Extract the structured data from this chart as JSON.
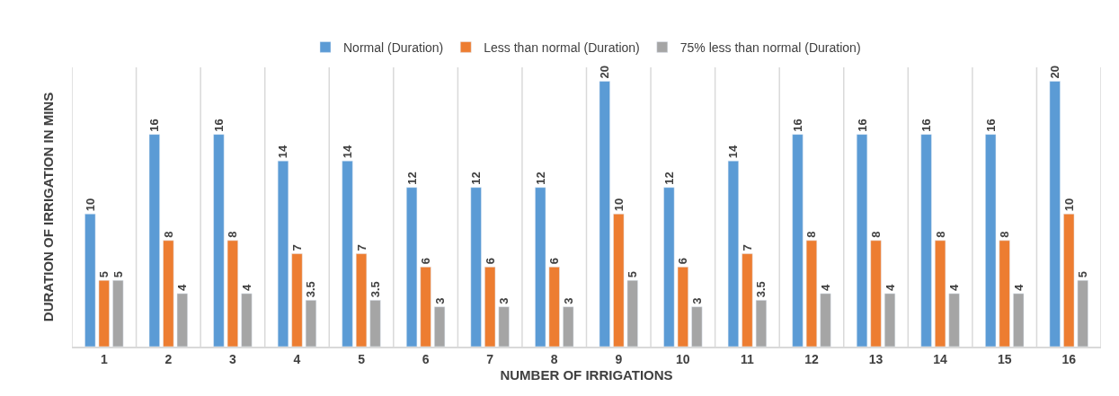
{
  "chart_data": {
    "type": "bar",
    "xlabel": "NUMBER OF IRRIGATIONS",
    "ylabel": "DURATION OF IRRIGATION IN MINS",
    "categories": [
      "1",
      "2",
      "3",
      "4",
      "5",
      "6",
      "7",
      "8",
      "9",
      "10",
      "11",
      "12",
      "13",
      "14",
      "15",
      "16"
    ],
    "series": [
      {
        "name": "Normal (Duration)",
        "color": "#5b9bd5",
        "values": [
          10,
          16,
          16,
          14,
          14,
          12,
          12,
          12,
          20,
          12,
          14,
          16,
          16,
          16,
          16,
          20
        ]
      },
      {
        "name": "Less than normal (Duration)",
        "color": "#ed7d31",
        "values": [
          5,
          8,
          8,
          7,
          7,
          6,
          6,
          6,
          10,
          6,
          7,
          8,
          8,
          8,
          8,
          10
        ]
      },
      {
        "name": "75% less than normal (Duration)",
        "color": "#a5a5a5",
        "values": [
          5,
          4,
          4,
          3.5,
          3.5,
          3,
          3,
          3,
          5,
          3,
          3.5,
          4,
          4,
          4,
          4,
          5
        ]
      }
    ],
    "data_labels": true,
    "grid": "x",
    "legend": "top",
    "tick_labels": "x"
  }
}
